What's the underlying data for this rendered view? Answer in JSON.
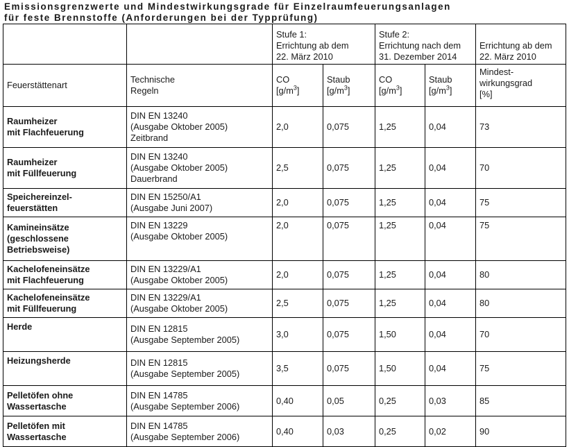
{
  "title_lines": [
    "Emissionsgrenzwerte und Mindestwirkungsgrade für Einzelraumfeuerungsanlagen",
    "für feste Brennstoffe (Anforderungen bei der Typprüfung)"
  ],
  "header_top": {
    "stufe1": [
      "Stufe 1:",
      "Errichtung ab dem",
      "22. März 2010"
    ],
    "stufe2": [
      "Stufe 2:",
      "Errichtung nach dem",
      "31. Dezember 2014"
    ],
    "errichtung": [
      "Errichtung ab dem",
      "22. März 2010"
    ]
  },
  "header_cols": {
    "feuerstaettenart": "Feuerstättenart",
    "technische_regeln": [
      "Technische",
      "Regeln"
    ],
    "co": "CO",
    "staub": "Staub",
    "unit_prefix": "[g/m",
    "unit_exp": "3",
    "unit_suffix": "]",
    "wirkungsgrad": [
      "Mindest-",
      "wirkungsgrad",
      "[%]"
    ]
  },
  "rows": [
    {
      "art": [
        "Raumheizer",
        "mit Flachfeuerung"
      ],
      "regeln": [
        "DIN EN 13240",
        "(Ausgabe Oktober 2005)",
        "Zeitbrand"
      ],
      "co1": "2,0",
      "staub1": "0,075",
      "co2": "1,25",
      "staub2": "0,04",
      "wg": "73"
    },
    {
      "art": [
        "Raumheizer",
        "mit Füllfeuerung"
      ],
      "regeln": [
        "DIN EN 13240",
        "(Ausgabe Oktober 2005)",
        "Dauerbrand"
      ],
      "co1": "2,5",
      "staub1": "0,075",
      "co2": "1,25",
      "staub2": "0,04",
      "wg": "70"
    },
    {
      "art": [
        "Speichereinzel-",
        "feuerstätten"
      ],
      "regeln": [
        "DIN EN 15250/A1",
        "(Ausgabe Juni 2007)"
      ],
      "co1": "2,0",
      "staub1": "0,075",
      "co2": "1,25",
      "staub2": "0,04",
      "wg": "75"
    },
    {
      "art": [
        "Kamineinsätze",
        "(geschlossene",
        "Betriebsweise)"
      ],
      "regeln": [
        "DIN EN 13229",
        "(Ausgabe Oktober 2005)"
      ],
      "co1": "2,0",
      "staub1": "0,075",
      "co2": "1,25",
      "staub2": "0,04",
      "wg": "75"
    },
    {
      "art": [
        "Kachelofeneinsätze",
        "mit Flachfeuerung"
      ],
      "regeln": [
        "DIN EN 13229/A1",
        "(Ausgabe Oktober 2005)"
      ],
      "co1": "2,0",
      "staub1": "0,075",
      "co2": "1,25",
      "staub2": "0,04",
      "wg": "80"
    },
    {
      "art": [
        "Kachelofeneinsätze",
        "mit Füllfeuerung"
      ],
      "regeln": [
        "DIN EN 13229/A1",
        "(Ausgabe Oktober 2005)"
      ],
      "co1": "2,5",
      "staub1": "0,075",
      "co2": "1,25",
      "staub2": "0,04",
      "wg": "80"
    },
    {
      "art": [
        "Herde"
      ],
      "regeln": [
        "DIN EN 12815",
        "(Ausgabe September 2005)"
      ],
      "co1": "3,0",
      "staub1": "0,075",
      "co2": "1,50",
      "staub2": "0,04",
      "wg": "70"
    },
    {
      "art": [
        "Heizungsherde"
      ],
      "regeln": [
        "DIN EN 12815",
        "(Ausgabe September 2005)"
      ],
      "co1": "3,5",
      "staub1": "0,075",
      "co2": "1,50",
      "staub2": "0,04",
      "wg": "75"
    },
    {
      "art": [
        "Pelletöfen ohne",
        "Wassertasche"
      ],
      "regeln": [
        "DIN EN 14785",
        "(Ausgabe September 2006)"
      ],
      "co1": "0,40",
      "staub1": "0,05",
      "co2": "0,25",
      "staub2": "0,03",
      "wg": "85"
    },
    {
      "art": [
        "Pelletöfen mit",
        "Wassertasche"
      ],
      "regeln": [
        "DIN EN 14785",
        "(Ausgabe September 2006)"
      ],
      "co1": "0,40",
      "staub1": "0,03",
      "co2": "0,25",
      "staub2": "0,02",
      "wg": "90"
    }
  ]
}
